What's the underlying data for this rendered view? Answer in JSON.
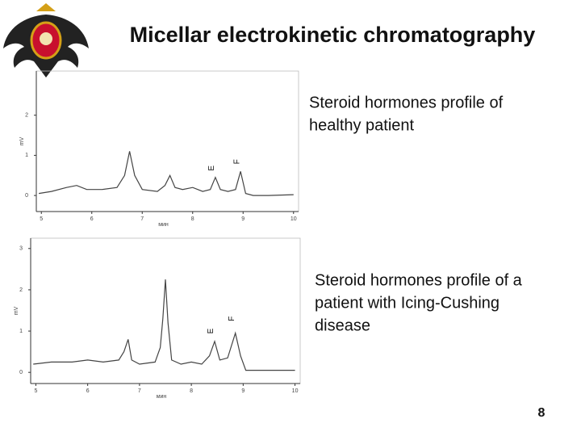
{
  "slide": {
    "title": "Micellar electrokinetic chromatography",
    "page_number": "8"
  },
  "captions": [
    [
      "Steroid hormones profile of",
      "healthy patient"
    ],
    [
      "Steroid hormones profile of a",
      "patient with Icing-Cushing",
      "disease"
    ]
  ],
  "chart_data": [
    {
      "type": "line",
      "x_label": "мин",
      "y_label": "mV",
      "xlim": [
        4.9,
        10.1
      ],
      "ylim": [
        -0.4,
        3.1
      ],
      "xticks": [
        5,
        6,
        7,
        8,
        9,
        10
      ],
      "yticks": [
        0,
        1,
        2
      ],
      "series": [
        {
          "color": "#444444",
          "x": [
            4.95,
            5.2,
            5.5,
            5.7,
            5.9,
            6.2,
            6.5,
            6.65,
            6.75,
            6.85,
            7.0,
            7.3,
            7.45,
            7.55,
            7.65,
            7.8,
            8.0,
            8.2,
            8.35,
            8.45,
            8.55,
            8.7,
            8.85,
            8.95,
            9.05,
            9.2,
            9.5,
            10.0
          ],
          "values": [
            0.05,
            0.1,
            0.2,
            0.25,
            0.15,
            0.15,
            0.2,
            0.5,
            1.1,
            0.5,
            0.15,
            0.1,
            0.25,
            0.5,
            0.2,
            0.15,
            0.2,
            0.1,
            0.15,
            0.45,
            0.15,
            0.1,
            0.15,
            0.6,
            0.05,
            0,
            0,
            0.02
          ]
        }
      ],
      "annotations": [
        {
          "text": "E",
          "x": 8.38,
          "y": 0.68
        },
        {
          "text": "F",
          "x": 8.88,
          "y": 0.84
        }
      ]
    },
    {
      "type": "line",
      "x_label": "мин",
      "y_label": "mV",
      "xlim": [
        4.9,
        10.1
      ],
      "ylim": [
        -0.27,
        3.25
      ],
      "xticks": [
        5,
        6,
        7,
        8,
        9,
        10
      ],
      "yticks": [
        0,
        1,
        2,
        3
      ],
      "series": [
        {
          "color": "#444444",
          "x": [
            4.95,
            5.3,
            5.7,
            6.0,
            6.3,
            6.6,
            6.7,
            6.78,
            6.85,
            7.0,
            7.3,
            7.4,
            7.45,
            7.5,
            7.55,
            7.62,
            7.8,
            8.0,
            8.2,
            8.35,
            8.45,
            8.55,
            8.7,
            8.85,
            8.95,
            9.05,
            9.3,
            10.0
          ],
          "values": [
            0.2,
            0.25,
            0.25,
            0.3,
            0.25,
            0.3,
            0.5,
            0.8,
            0.3,
            0.2,
            0.25,
            0.6,
            1.3,
            2.25,
            1.2,
            0.3,
            0.2,
            0.25,
            0.2,
            0.4,
            0.75,
            0.3,
            0.35,
            0.95,
            0.4,
            0.05,
            0.05,
            0.05
          ]
        }
      ],
      "annotations": [
        {
          "text": "E",
          "x": 8.38,
          "y": 1.0
        },
        {
          "text": "F",
          "x": 8.78,
          "y": 1.3
        }
      ]
    }
  ]
}
